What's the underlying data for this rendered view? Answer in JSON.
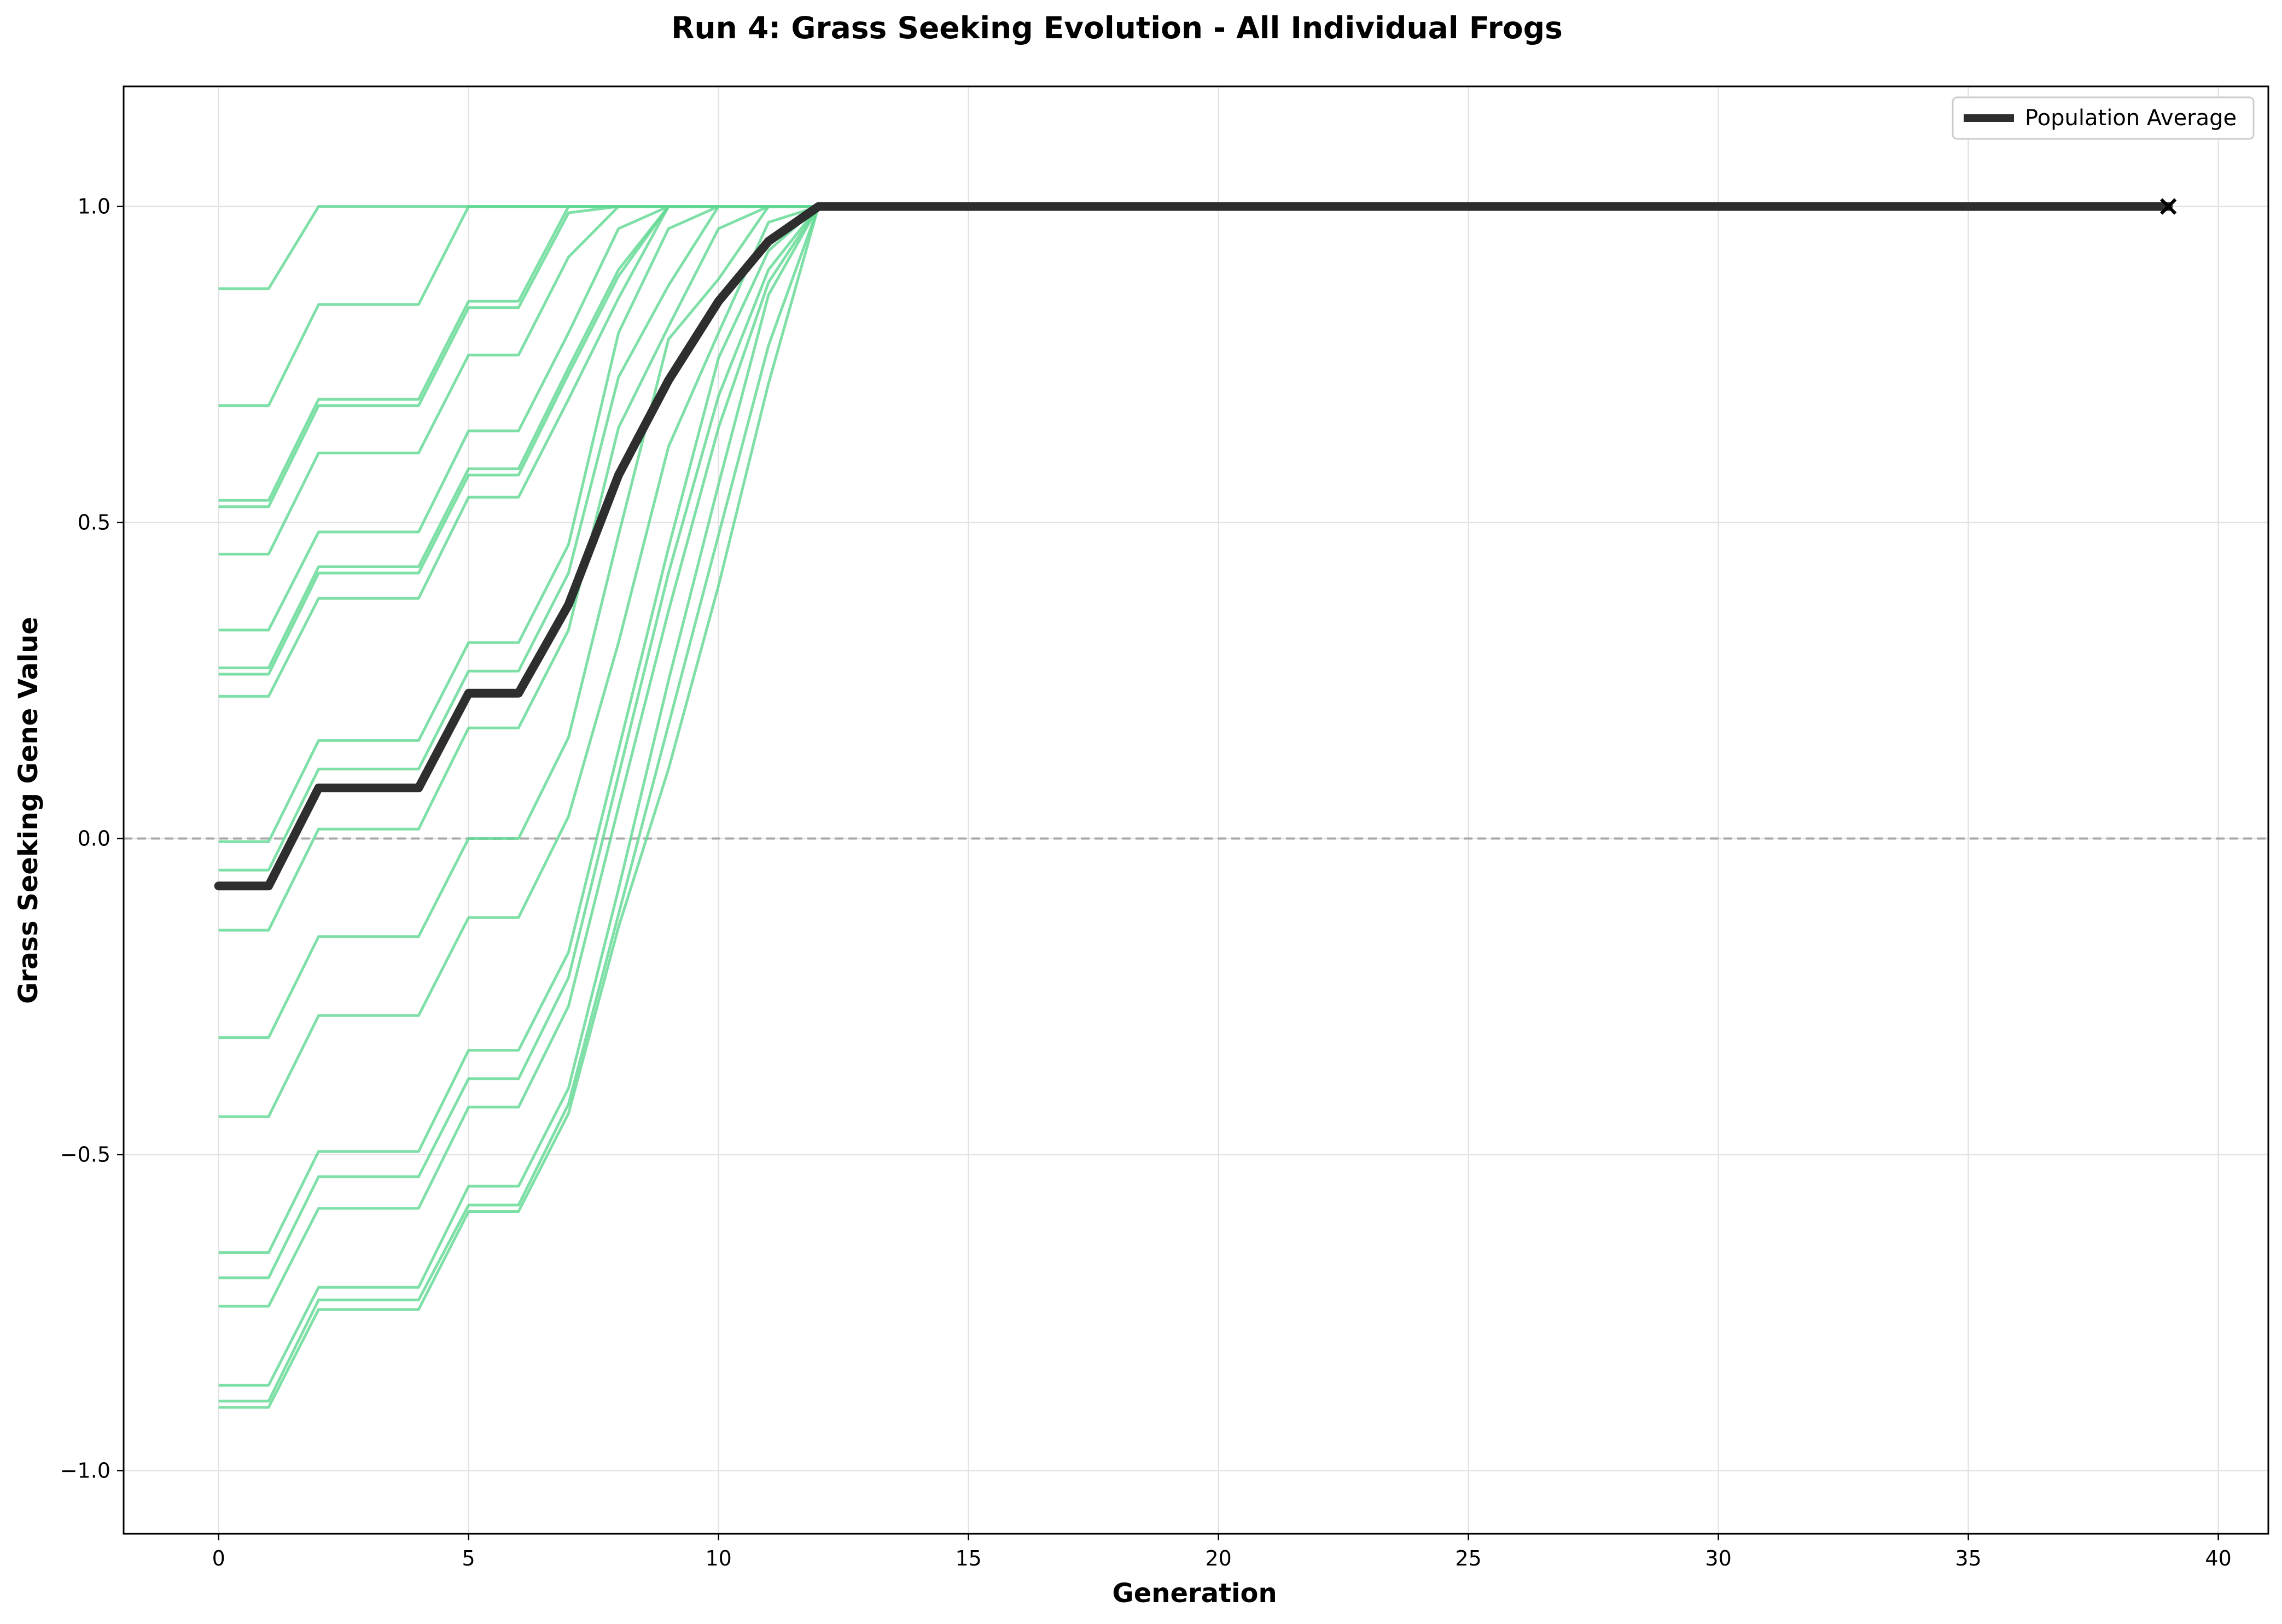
{
  "chart_data": {
    "type": "line",
    "title": "Run 4: Grass Seeking Evolution - All Individual Frogs",
    "xlabel": "Generation",
    "ylabel": "Grass Seeking Gene Value",
    "xlim": [
      -1.9,
      41
    ],
    "ylim": [
      -1.1,
      1.19
    ],
    "xticks": [
      0,
      5,
      10,
      15,
      20,
      25,
      30,
      35,
      40
    ],
    "yticks": [
      -1.0,
      -0.5,
      0.0,
      0.5,
      1.0
    ],
    "ytick_labels": [
      "−1.0",
      "−0.5",
      "0.0",
      "0.5",
      "1.0"
    ],
    "grid": true,
    "reference_line": {
      "y": 0.0,
      "style": "dashed",
      "color": "#aaaaaa"
    },
    "legend": {
      "placement": "top-right",
      "entries": [
        "Population Average"
      ]
    },
    "individual_color": "#5fd891",
    "average_color": "#2e2e2e",
    "end_marker": {
      "x": 39,
      "y": 1.0,
      "symbol": "x"
    },
    "individuals": [
      {
        "x": [
          0,
          1,
          2,
          4,
          5,
          6,
          7,
          8,
          9,
          10,
          11,
          12,
          39
        ],
        "values": [
          0.87,
          0.87,
          1.0,
          1.0,
          1.0,
          1.0,
          1.0,
          1.0,
          1.0,
          1.0,
          1.0,
          1.0,
          1.0
        ]
      },
      {
        "x": [
          0,
          1,
          2,
          4,
          5,
          6,
          7,
          8,
          9,
          10,
          11,
          12,
          39
        ],
        "values": [
          0.685,
          0.685,
          0.845,
          0.845,
          1.0,
          1.0,
          1.0,
          1.0,
          1.0,
          1.0,
          1.0,
          1.0,
          1.0
        ]
      },
      {
        "x": [
          0,
          1,
          2,
          4,
          5,
          6,
          7,
          8,
          9,
          10,
          11,
          12,
          39
        ],
        "values": [
          0.535,
          0.535,
          0.695,
          0.695,
          0.85,
          0.85,
          1.0,
          1.0,
          1.0,
          1.0,
          1.0,
          1.0,
          1.0
        ]
      },
      {
        "x": [
          0,
          1,
          2,
          4,
          5,
          6,
          7,
          8,
          9,
          10,
          11,
          12,
          39
        ],
        "values": [
          0.525,
          0.525,
          0.685,
          0.685,
          0.84,
          0.84,
          0.99,
          1.0,
          1.0,
          1.0,
          1.0,
          1.0,
          1.0
        ]
      },
      {
        "x": [
          0,
          1,
          2,
          4,
          5,
          6,
          7,
          8,
          9,
          10,
          11,
          12,
          39
        ],
        "values": [
          0.45,
          0.45,
          0.61,
          0.61,
          0.765,
          0.765,
          0.92,
          1.0,
          1.0,
          1.0,
          1.0,
          1.0,
          1.0
        ]
      },
      {
        "x": [
          0,
          1,
          2,
          4,
          5,
          6,
          7,
          8,
          9,
          10,
          11,
          12,
          39
        ],
        "values": [
          0.33,
          0.33,
          0.485,
          0.485,
          0.645,
          0.645,
          0.8,
          0.965,
          1.0,
          1.0,
          1.0,
          1.0,
          1.0
        ]
      },
      {
        "x": [
          0,
          1,
          2,
          4,
          5,
          6,
          7,
          8,
          9,
          10,
          11,
          12,
          39
        ],
        "values": [
          0.27,
          0.27,
          0.43,
          0.43,
          0.585,
          0.585,
          0.745,
          0.9,
          1.0,
          1.0,
          1.0,
          1.0,
          1.0
        ]
      },
      {
        "x": [
          0,
          1,
          2,
          4,
          5,
          6,
          7,
          8,
          9,
          10,
          11,
          12,
          39
        ],
        "values": [
          0.26,
          0.26,
          0.42,
          0.42,
          0.575,
          0.575,
          0.735,
          0.89,
          1.0,
          1.0,
          1.0,
          1.0,
          1.0
        ]
      },
      {
        "x": [
          0,
          1,
          2,
          4,
          5,
          6,
          7,
          8,
          9,
          10,
          11,
          12,
          39
        ],
        "values": [
          0.225,
          0.225,
          0.38,
          0.38,
          0.54,
          0.54,
          0.695,
          0.855,
          1.0,
          1.0,
          1.0,
          1.0,
          1.0
        ]
      },
      {
        "x": [
          0,
          1,
          2,
          4,
          5,
          6,
          7,
          8,
          9,
          10,
          11,
          12,
          39
        ],
        "values": [
          -0.005,
          -0.005,
          0.155,
          0.155,
          0.31,
          0.31,
          0.465,
          0.8,
          0.965,
          1.0,
          1.0,
          1.0,
          1.0
        ]
      },
      {
        "x": [
          0,
          1,
          2,
          4,
          5,
          6,
          7,
          8,
          9,
          10,
          11,
          12,
          39
        ],
        "values": [
          -0.05,
          -0.05,
          0.11,
          0.11,
          0.265,
          0.265,
          0.42,
          0.73,
          0.875,
          1.0,
          1.0,
          1.0,
          1.0
        ]
      },
      {
        "x": [
          0,
          1,
          2,
          4,
          5,
          6,
          7,
          8,
          9,
          10,
          11,
          12,
          39
        ],
        "values": [
          -0.145,
          -0.145,
          0.015,
          0.015,
          0.175,
          0.175,
          0.33,
          0.65,
          0.81,
          0.965,
          1.0,
          1.0,
          1.0
        ]
      },
      {
        "x": [
          0,
          1,
          2,
          4,
          5,
          6,
          7,
          8,
          9,
          10,
          11,
          12,
          39
        ],
        "values": [
          -0.315,
          -0.315,
          -0.155,
          -0.155,
          0.0,
          0.0,
          0.16,
          0.48,
          0.79,
          0.885,
          1.0,
          1.0,
          1.0
        ]
      },
      {
        "x": [
          0,
          1,
          2,
          4,
          5,
          6,
          7,
          8,
          9,
          10,
          11,
          12,
          39
        ],
        "values": [
          -0.44,
          -0.44,
          -0.28,
          -0.28,
          -0.125,
          -0.125,
          0.035,
          0.31,
          0.62,
          0.8,
          0.975,
          1.0,
          1.0
        ]
      },
      {
        "x": [
          0,
          1,
          2,
          4,
          5,
          6,
          7,
          8,
          9,
          10,
          11,
          12,
          39
        ],
        "values": [
          -0.655,
          -0.655,
          -0.495,
          -0.495,
          -0.335,
          -0.335,
          -0.18,
          0.14,
          0.46,
          0.76,
          0.93,
          1.0,
          1.0
        ]
      },
      {
        "x": [
          0,
          1,
          2,
          4,
          5,
          6,
          7,
          8,
          9,
          10,
          11,
          12,
          39
        ],
        "values": [
          -0.695,
          -0.695,
          -0.535,
          -0.535,
          -0.38,
          -0.38,
          -0.22,
          0.1,
          0.42,
          0.7,
          0.9,
          1.0,
          1.0
        ]
      },
      {
        "x": [
          0,
          1,
          2,
          4,
          5,
          6,
          7,
          8,
          9,
          10,
          11,
          12,
          39
        ],
        "values": [
          -0.74,
          -0.74,
          -0.585,
          -0.585,
          -0.425,
          -0.425,
          -0.265,
          0.05,
          0.36,
          0.65,
          0.88,
          1.0,
          1.0
        ]
      },
      {
        "x": [
          0,
          1,
          2,
          4,
          5,
          6,
          7,
          8,
          9,
          10,
          11,
          12,
          39
        ],
        "values": [
          -0.865,
          -0.865,
          -0.71,
          -0.71,
          -0.55,
          -0.55,
          -0.395,
          -0.08,
          0.25,
          0.56,
          0.86,
          1.0,
          1.0
        ]
      },
      {
        "x": [
          0,
          1,
          2,
          4,
          5,
          6,
          7,
          8,
          9,
          10,
          11,
          12,
          39
        ],
        "values": [
          -0.89,
          -0.89,
          -0.73,
          -0.73,
          -0.58,
          -0.58,
          -0.42,
          -0.12,
          0.18,
          0.48,
          0.78,
          1.0,
          1.0
        ]
      },
      {
        "x": [
          0,
          1,
          2,
          4,
          5,
          6,
          7,
          8,
          9,
          10,
          11,
          12,
          39
        ],
        "values": [
          -0.9,
          -0.9,
          -0.745,
          -0.745,
          -0.59,
          -0.59,
          -0.435,
          -0.14,
          0.11,
          0.4,
          0.72,
          1.0,
          1.0
        ]
      }
    ],
    "series": [
      {
        "name": "Population Average",
        "x": [
          0,
          1,
          2,
          3,
          4,
          5,
          6,
          7,
          8,
          9,
          10,
          11,
          12,
          39
        ],
        "values": [
          -0.075,
          -0.075,
          0.08,
          0.08,
          0.08,
          0.23,
          0.23,
          0.37,
          0.575,
          0.725,
          0.85,
          0.945,
          1.0,
          1.0
        ]
      }
    ]
  }
}
